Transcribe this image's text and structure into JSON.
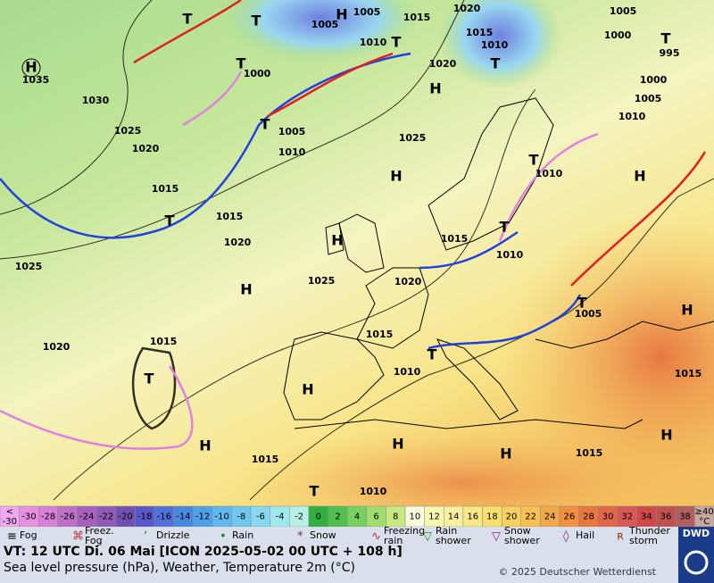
{
  "map": {
    "isobar_labels": [
      1035,
      1030,
      1025,
      1020,
      1015,
      1015,
      1020,
      1025,
      1020,
      1015,
      1010,
      1015,
      1020,
      1025,
      1015,
      1010,
      1015,
      1015,
      1005,
      1010,
      1015,
      1010,
      1010,
      1005,
      1000,
      995,
      1000,
      1005,
      1020,
      1015,
      1010,
      1020,
      1025,
      1010,
      1005,
      1000,
      1010,
      1005,
      1005,
      1015
    ],
    "high_labels": [
      "H",
      "H",
      "H",
      "H",
      "H",
      "H",
      "H",
      "H",
      "H",
      "H",
      "H",
      "H",
      "H"
    ],
    "low_labels": [
      "T",
      "T",
      "T",
      "T",
      "T",
      "T",
      "T",
      "T",
      "T",
      "T",
      "T",
      "T",
      "T",
      "T"
    ]
  },
  "temperature_legend": {
    "low_label": [
      "<",
      "-30"
    ],
    "values": [
      -30,
      -28,
      -26,
      -24,
      -22,
      -20,
      -18,
      -16,
      -14,
      -12,
      -10,
      -8,
      -6,
      -4,
      -2,
      0,
      2,
      4,
      6,
      8,
      10,
      12,
      14,
      16,
      18,
      20,
      22,
      24,
      26,
      28,
      30,
      32,
      34,
      36,
      38
    ],
    "high_label": [
      "≥40",
      "°C"
    ],
    "colors": [
      "#f0a8f0",
      "#e890e0",
      "#d880d8",
      "#c070c8",
      "#a860c0",
      "#9058b8",
      "#7050b0",
      "#5858c8",
      "#5070d8",
      "#4888e0",
      "#50a0e8",
      "#60b8f0",
      "#70c8f0",
      "#88d8f0",
      "#a0e8f0",
      "#b8f0e8",
      "#30b040",
      "#50c050",
      "#78d060",
      "#a0dc70",
      "#c8e880",
      "#fafce0",
      "#f8f8b0",
      "#f8f0a0",
      "#f8e888",
      "#f8e070",
      "#f8d060",
      "#f8c050",
      "#f0a848",
      "#f09040",
      "#e87840",
      "#e06848",
      "#d85858",
      "#d04848",
      "#c05050",
      "#b06060",
      "#c8a8a0"
    ]
  },
  "weather_legend": [
    [
      "Fog"
    ],
    [
      "Freez.",
      "Fog"
    ],
    [
      "Drizzle"
    ],
    [
      "Rain"
    ],
    [
      "Snow"
    ],
    [
      "Freezing",
      "rain"
    ],
    [
      "Rain",
      "shower"
    ],
    [
      "Snow",
      "shower"
    ],
    [
      "Hail"
    ],
    [
      "Thunder",
      "storm"
    ]
  ],
  "footer": {
    "valid_time": "VT: 12 UTC Di.  06 Mai [ICON 2025-05-02  00 UTC + 108 h]",
    "description": "Sea level pressure (hPa), Weather, Temperature 2m (°C)",
    "copyright": "© 2025 Deutscher Wetterdienst",
    "logo": "DWD"
  }
}
